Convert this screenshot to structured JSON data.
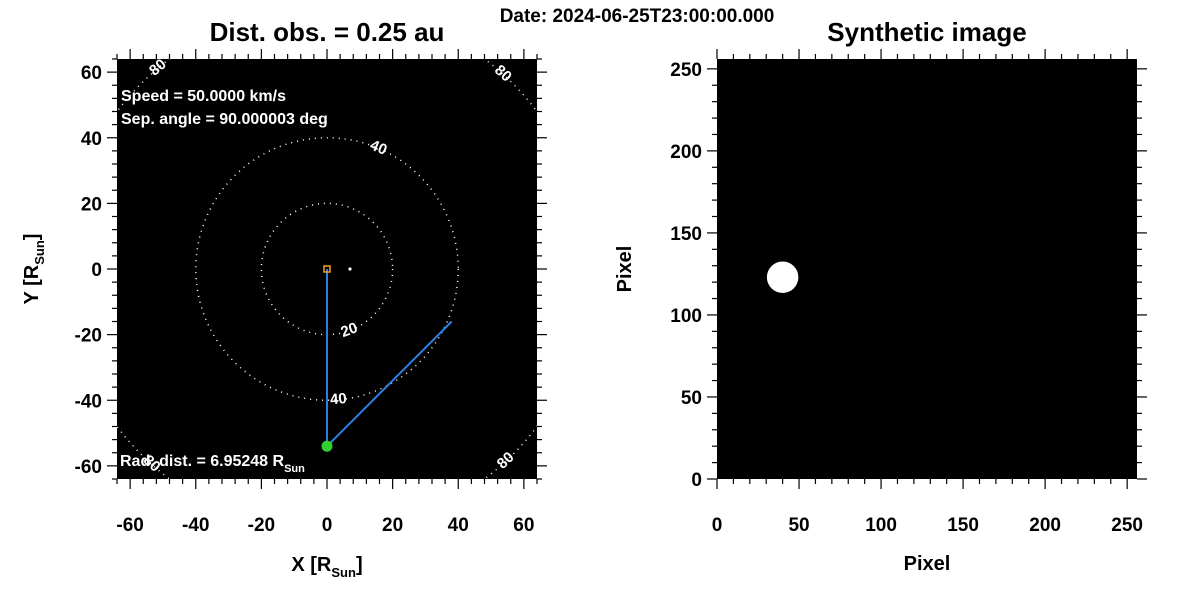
{
  "header": {
    "date": "Date: 2024-06-25T23:00:00.000"
  },
  "colors": {
    "ray": "#2f7fe0",
    "earth": "#2fd02f",
    "sun": "#f0a020",
    "plot_bg": "#000000",
    "dots": "#ffffff"
  },
  "chart_data": [
    {
      "type": "scatter",
      "title": "Dist. obs. = 0.25 au",
      "xlabel": {
        "main": "X [R",
        "sub": "Sun",
        "close": "]"
      },
      "ylabel": {
        "main": "Y [R",
        "sub": "Sun",
        "close": "]"
      },
      "xlim": [
        -64,
        64
      ],
      "ylim": [
        -64,
        64
      ],
      "xticks": [
        -60,
        -40,
        -20,
        0,
        20,
        40,
        60
      ],
      "yticks": [
        -60,
        -40,
        -20,
        0,
        20,
        40,
        60
      ],
      "tick_labels_x": [
        "-60",
        "-40",
        "-20",
        "0",
        "20",
        "40",
        "60"
      ],
      "tick_labels_y": [
        "-60",
        "-40",
        "-20",
        "0",
        "20",
        "40",
        "60"
      ],
      "annotations": {
        "speed": "Speed =  50.0000 km/s",
        "sep_angle": "Sep. angle =  90.000003 deg",
        "rad_dist_main": "Rad. dist. =  6.95248 R",
        "rad_dist_sub": "Sun"
      },
      "circles": [
        {
          "radius": 20,
          "label": "20",
          "label_angle_deg": -70
        },
        {
          "radius": 40,
          "label": "40",
          "label_angle_deg": 67
        },
        {
          "radius": 40,
          "label": "40",
          "label_angle_deg": -85
        },
        {
          "radius": 80,
          "label": "80",
          "label_angle_deg": 130
        },
        {
          "radius": 80,
          "label": "80",
          "label_angle_deg": 48
        },
        {
          "radius": 80,
          "label": "80",
          "label_angle_deg": -132
        },
        {
          "radius": 80,
          "label": "80",
          "label_angle_deg": -47
        }
      ],
      "points": {
        "sun": [
          0,
          0
        ],
        "earth": [
          0,
          -54
        ],
        "cme": [
          7,
          0
        ],
        "ray_end": [
          38,
          -16
        ]
      }
    },
    {
      "type": "heatmap",
      "title": "Synthetic image",
      "xlabel": "Pixel",
      "ylabel": "Pixel",
      "xlim": [
        0,
        256
      ],
      "ylim": [
        0,
        256
      ],
      "xticks": [
        0,
        50,
        100,
        150,
        200,
        250
      ],
      "yticks": [
        0,
        50,
        100,
        150,
        200,
        250
      ],
      "tick_labels_x": [
        "0",
        "50",
        "100",
        "150",
        "200",
        "250"
      ],
      "tick_labels_y": [
        "0",
        "50",
        "100",
        "150",
        "200",
        "250"
      ],
      "blob": {
        "x": 40,
        "y": 123,
        "radius_px": 6
      }
    }
  ]
}
